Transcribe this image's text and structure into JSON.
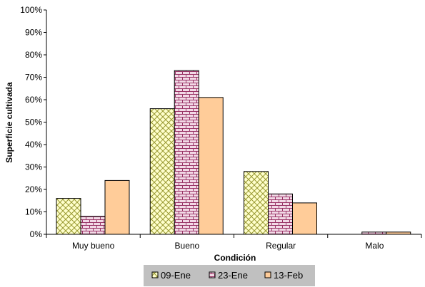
{
  "chart_data": {
    "type": "bar",
    "xlabel": "Condición",
    "ylabel": "Superficie cultivada",
    "ylim": [
      0,
      100
    ],
    "yticks": [
      "0%",
      "10%",
      "20%",
      "30%",
      "40%",
      "50%",
      "60%",
      "70%",
      "80%",
      "90%",
      "100%"
    ],
    "categories": [
      "Muy bueno",
      "Bueno",
      "Regular",
      "Malo"
    ],
    "series": [
      {
        "name": "09-Ene",
        "values": [
          16,
          56,
          28,
          0
        ],
        "pattern": "diagonal-crosshatch",
        "fill": "#FFFFCC",
        "stroke": "#808000"
      },
      {
        "name": "23-Ene",
        "values": [
          8,
          73,
          18,
          1
        ],
        "pattern": "brick",
        "fill": "#F2D9E6",
        "stroke": "#993366"
      },
      {
        "name": "13-Feb",
        "values": [
          24,
          61,
          14,
          1
        ],
        "pattern": "solid",
        "fill": "#FFCC99",
        "stroke": "#000000"
      }
    ],
    "grid": false,
    "legend_position": "bottom"
  },
  "colors": {
    "legend_background": "#C0C0C0"
  }
}
